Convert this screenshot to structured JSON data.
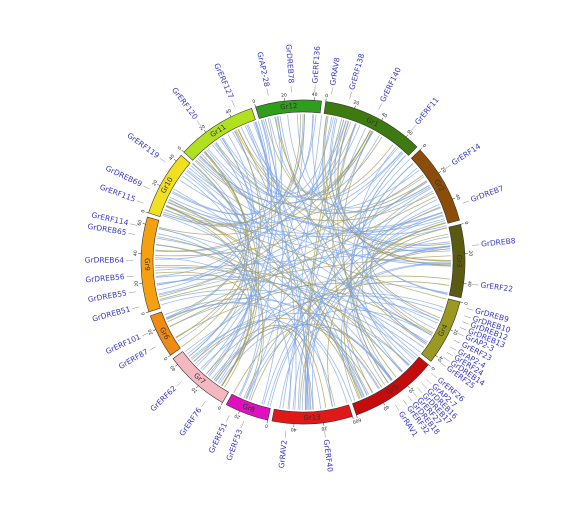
{
  "chromosomes": [
    {
      "name": "Gr12",
      "color": "#2e9e1c",
      "length": 45
    },
    {
      "name": "Gr1",
      "color": "#3d7a10",
      "length": 70
    },
    {
      "name": "Gr2",
      "color": "#8c4d08",
      "length": 55
    },
    {
      "name": "Gr3",
      "color": "#5a5a10",
      "length": 50
    },
    {
      "name": "Gr4",
      "color": "#9a9a22",
      "length": 45
    },
    {
      "name": "Gr5",
      "color": "#c40c0c",
      "length": 60
    },
    {
      "name": "Gr13",
      "color": "#e01818",
      "length": 55
    },
    {
      "name": "Gr8",
      "color": "#e010c0",
      "length": 30
    },
    {
      "name": "Gr7",
      "color": "#f4b8c0",
      "length": 45
    },
    {
      "name": "Gr6",
      "color": "#f08a10",
      "length": 30
    },
    {
      "name": "Gr9",
      "color": "#f5a010",
      "length": 65
    },
    {
      "name": "Gr10",
      "color": "#f0e020",
      "length": 45
    },
    {
      "name": "Gr11",
      "color": "#b0e020",
      "length": 55
    }
  ],
  "tick_labels": [
    0,
    20,
    40,
    60
  ],
  "genes": [
    {
      "label": "GrAP2-28",
      "chromosome": 0,
      "position": 10
    },
    {
      "label": "GrDREB78",
      "chromosome": 0,
      "position": 25
    },
    {
      "label": "GrERF136",
      "chromosome": 0,
      "position": 40
    },
    {
      "label": "GrRAV8",
      "chromosome": 1,
      "position": 3
    },
    {
      "label": "GrERF138",
      "chromosome": 1,
      "position": 15
    },
    {
      "label": "GrERF140",
      "chromosome": 1,
      "position": 35
    },
    {
      "label": "GrERF11",
      "chromosome": 1,
      "position": 60
    },
    {
      "label": "GrERF14",
      "chromosome": 2,
      "position": 20
    },
    {
      "label": "GrDREB7",
      "chromosome": 2,
      "position": 45
    },
    {
      "label": "GrDREB8",
      "chromosome": 3,
      "position": 15
    },
    {
      "label": "GrERF22",
      "chromosome": 3,
      "position": 40
    },
    {
      "label": "GrDREB9",
      "chromosome": 4,
      "position": 3
    },
    {
      "label": "GrDREB10",
      "chromosome": 4,
      "position": 8
    },
    {
      "label": "GrDREB12",
      "chromosome": 4,
      "position": 12
    },
    {
      "label": "GrDREB13",
      "chromosome": 4,
      "position": 16
    },
    {
      "label": "GrAP2-3",
      "chromosome": 4,
      "position": 20
    },
    {
      "label": "GrERF23",
      "chromosome": 4,
      "position": 25
    },
    {
      "label": "GrAP2-4",
      "chromosome": 4,
      "position": 30
    },
    {
      "label": "GrERF24",
      "chromosome": 4,
      "position": 34
    },
    {
      "label": "GrDREB14",
      "chromosome": 4,
      "position": 38
    },
    {
      "label": "GrERF25",
      "chromosome": 4,
      "position": 42
    },
    {
      "label": "GrERF26",
      "chromosome": 5,
      "position": 3
    },
    {
      "label": "GrAP2-7",
      "chromosome": 5,
      "position": 8
    },
    {
      "label": "GrDREB16",
      "chromosome": 5,
      "position": 12
    },
    {
      "label": "GrDREB17",
      "chromosome": 5,
      "position": 16
    },
    {
      "label": "GrERF27",
      "chromosome": 5,
      "position": 20
    },
    {
      "label": "GrDREB18",
      "chromosome": 5,
      "position": 24
    },
    {
      "label": "GrERF32",
      "chromosome": 5,
      "position": 28
    },
    {
      "label": "GrRAV1",
      "chromosome": 5,
      "position": 34
    },
    {
      "label": "GrERF40",
      "chromosome": 6,
      "position": 20
    },
    {
      "label": "GrRAV2",
      "chromosome": 6,
      "position": 45
    },
    {
      "label": "GrERF53",
      "chromosome": 7,
      "position": 15
    },
    {
      "label": "GrERF51",
      "chromosome": 7,
      "position": 25
    },
    {
      "label": "GrERF76",
      "chromosome": 8,
      "position": 10
    },
    {
      "label": "GrERF62",
      "chromosome": 8,
      "position": 30
    },
    {
      "label": "GrERF87",
      "chromosome": 9,
      "position": 10
    },
    {
      "label": "GrERF101",
      "chromosome": 9,
      "position": 20
    },
    {
      "label": "GrDREB51",
      "chromosome": 10,
      "position": 5
    },
    {
      "label": "GrDREB55",
      "chromosome": 10,
      "position": 15
    },
    {
      "label": "GrDREB56",
      "chromosome": 10,
      "position": 25
    },
    {
      "label": "GrDREB64",
      "chromosome": 10,
      "position": 35
    },
    {
      "label": "GrDREB65",
      "chromosome": 10,
      "position": 52
    },
    {
      "label": "GrERF114",
      "chromosome": 10,
      "position": 58
    },
    {
      "label": "GrERF115",
      "chromosome": 11,
      "position": 5
    },
    {
      "label": "GrDREB69",
      "chromosome": 11,
      "position": 15
    },
    {
      "label": "GrERF119",
      "chromosome": 11,
      "position": 35
    },
    {
      "label": "GrERF120",
      "chromosome": 12,
      "position": 20
    },
    {
      "label": "GrERF127",
      "chromosome": 12,
      "position": 45
    }
  ]
}
